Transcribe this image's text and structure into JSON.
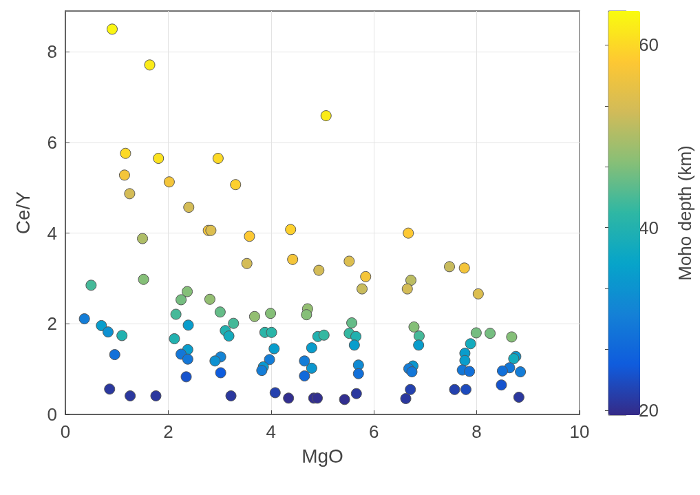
{
  "chart_data": {
    "type": "scatter",
    "xlabel": "MgO",
    "ylabel": "Ce/Y",
    "clabel": "Moho depth (km)",
    "xlim": [
      0,
      10
    ],
    "xticks": [
      0,
      2,
      4,
      6,
      8,
      10
    ],
    "ylim": [
      0,
      8.9
    ],
    "yticks": [
      0,
      2,
      4,
      6,
      8
    ],
    "clim": [
      19.5,
      63.7
    ],
    "cticks": [
      20,
      {
        "value": 26.7,
        "label": null
      },
      {
        "value": 33.3,
        "label": null
      },
      40,
      {
        "value": 46.7,
        "label": null
      },
      {
        "value": 53.3,
        "label": null
      },
      60
    ],
    "grid": true,
    "marker": "circle",
    "x": [
      0.91,
      1.64,
      1.17,
      1.15,
      1.25,
      1.81,
      2.02,
      2.4,
      2.97,
      3.31,
      2.78,
      2.83,
      3.58,
      3.53,
      4.38,
      4.42,
      4.93,
      5.07,
      5.52,
      5.84,
      5.77,
      6.67,
      6.72,
      6.65,
      7.47,
      7.76,
      8.03,
      1.5,
      1.52,
      0.5,
      0.37,
      0.7,
      0.83,
      1.1,
      0.96,
      0.86,
      1.26,
      1.76,
      2.15,
      2.25,
      2.37,
      2.12,
      2.39,
      2.38,
      2.25,
      2.38,
      2.35,
      2.81,
      3.01,
      3.27,
      3.11,
      3.18,
      3.02,
      2.91,
      3.02,
      3.22,
      3.68,
      3.99,
      3.88,
      4.01,
      4.06,
      3.97,
      3.85,
      3.82,
      4.08,
      4.34,
      4.71,
      4.69,
      4.91,
      4.79,
      4.65,
      4.79,
      4.65,
      4.83,
      4.9,
      5.03,
      5.57,
      5.52,
      5.65,
      5.62,
      5.7,
      5.7,
      5.43,
      5.66,
      6.78,
      6.88,
      6.87,
      6.76,
      6.68,
      6.74,
      6.71,
      6.62,
      7.99,
      8.26,
      8.68,
      7.88,
      7.77,
      7.77,
      7.72,
      7.86,
      7.57,
      7.79,
      8.76,
      8.72,
      8.64,
      8.5,
      8.85,
      8.48,
      8.82
    ],
    "values": [
      8.5,
      7.71,
      5.76,
      5.28,
      4.87,
      5.65,
      5.13,
      4.57,
      5.65,
      5.07,
      4.06,
      4.06,
      3.93,
      3.33,
      4.08,
      3.42,
      3.18,
      6.59,
      3.38,
      3.04,
      2.77,
      4.0,
      2.96,
      2.77,
      3.26,
      3.23,
      2.66,
      3.88,
      2.98,
      2.85,
      2.11,
      1.96,
      1.82,
      1.74,
      1.32,
      0.56,
      0.41,
      0.41,
      2.21,
      2.53,
      2.71,
      1.67,
      1.97,
      1.43,
      1.33,
      1.22,
      0.83,
      2.54,
      2.26,
      2.01,
      1.85,
      1.73,
      1.27,
      1.18,
      0.92,
      0.41,
      2.16,
      2.23,
      1.81,
      1.81,
      1.45,
      1.21,
      1.05,
      0.97,
      0.48,
      0.36,
      2.33,
      2.2,
      1.72,
      1.47,
      1.18,
      1.02,
      0.85,
      0.36,
      0.36,
      1.75,
      2.02,
      1.79,
      1.72,
      1.53,
      1.09,
      0.9,
      0.33,
      0.46,
      1.93,
      1.73,
      1.53,
      1.07,
      1.01,
      0.94,
      0.55,
      0.35,
      1.8,
      1.79,
      1.71,
      1.56,
      1.35,
      1.19,
      0.98,
      0.95,
      0.55,
      0.55,
      1.28,
      1.23,
      1.03,
      0.96,
      0.94,
      0.65,
      0.38
    ],
    "cvalues": [
      63,
      62,
      60,
      57,
      53,
      61,
      57,
      53,
      60,
      59,
      57,
      54,
      58,
      53,
      59,
      57,
      53,
      62,
      54,
      57,
      52,
      58,
      51,
      53,
      52,
      57,
      54,
      50,
      47,
      43,
      30,
      35,
      33,
      40,
      28,
      21,
      21,
      21,
      43,
      46,
      47,
      40,
      35,
      35,
      29,
      29,
      24,
      48,
      45,
      43,
      40,
      38,
      31,
      33,
      25,
      21,
      48,
      47,
      41,
      41,
      35,
      30,
      34,
      30,
      22,
      20,
      48,
      47,
      40,
      35,
      30,
      34,
      27,
      20,
      20,
      42,
      45,
      42,
      40,
      35,
      32,
      28,
      20,
      21,
      47,
      43,
      35,
      34,
      30,
      29,
      22,
      21,
      46,
      46,
      47,
      38,
      35,
      35,
      29,
      28,
      22,
      23,
      34,
      38,
      29,
      28,
      30,
      24,
      21
    ]
  }
}
